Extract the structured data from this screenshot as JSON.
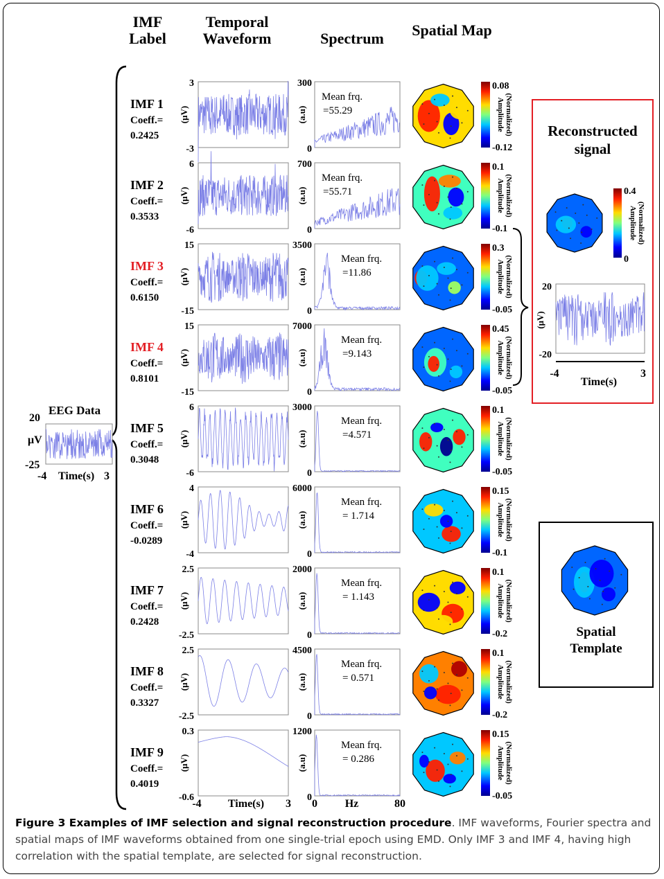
{
  "headers": {
    "imf_label": [
      "IMF",
      "Label"
    ],
    "temporal": [
      "Temporal",
      "Waveform"
    ],
    "spectrum": "Spectrum",
    "spatial": "Spatial Map"
  },
  "eeg": {
    "title": "EEG Data",
    "unit": "μV",
    "ymax": "20",
    "ymin": "-25",
    "xmin": "-4",
    "xmax": "3",
    "xlabel": "Time(s)"
  },
  "imfs": [
    {
      "label": "IMF 1",
      "coeff": "0.2425",
      "selected": false,
      "ymax": "3",
      "ymin": "-3",
      "smax": "300",
      "freq": "=55.29",
      "cmax": "0.08",
      "cmin": "-0.12",
      "freq_pos": "left"
    },
    {
      "label": "IMF 2",
      "coeff": "0.3533",
      "selected": false,
      "ymax": "6",
      "ymin": "-6",
      "smax": "700",
      "freq": "=55.71",
      "cmax": "0.1",
      "cmin": "-0.1",
      "freq_pos": "left"
    },
    {
      "label": "IMF 3",
      "coeff": "0.6150",
      "selected": true,
      "ymax": "15",
      "ymin": "-15",
      "smax": "3500",
      "freq": "=11.86",
      "cmax": "0.3",
      "cmin": "-0.05",
      "freq_pos": "right"
    },
    {
      "label": "IMF 4",
      "coeff": "0.8101",
      "selected": true,
      "ymax": "15",
      "ymin": "-15",
      "smax": "7000",
      "freq": "=9.143",
      "cmax": "0.45",
      "cmin": "-0.05",
      "freq_pos": "right"
    },
    {
      "label": "IMF 5",
      "coeff": "0.3048",
      "selected": false,
      "ymax": "6",
      "ymin": "-6",
      "smax": "3000",
      "freq": "=4.571",
      "cmax": "0.1",
      "cmin": "-0.05",
      "freq_pos": "right"
    },
    {
      "label": "IMF 6",
      "coeff": "-0.0289",
      "selected": false,
      "ymax": "4",
      "ymin": "-4",
      "smax": "6000",
      "freq": "= 1.714",
      "cmax": "0.15",
      "cmin": "-0.1",
      "freq_pos": "right"
    },
    {
      "label": "IMF 7",
      "coeff": "0.2428",
      "selected": false,
      "ymax": "2.5",
      "ymin": "-2.5",
      "smax": "2000",
      "freq": "= 1.143",
      "cmax": "0.1",
      "cmin": "-0.2",
      "freq_pos": "right"
    },
    {
      "label": "IMF 8",
      "coeff": "0.3327",
      "selected": false,
      "ymax": "2.5",
      "ymin": "-2.5",
      "smax": "4500",
      "freq": "= 0.571",
      "cmax": "0.1",
      "cmin": "-0.2",
      "freq_pos": "right"
    },
    {
      "label": "IMF 9",
      "coeff": "0.4019",
      "selected": false,
      "ymax": "0.3",
      "ymin": "-0.6",
      "smax": "1200",
      "freq": "= 0.286",
      "cmax": "0.15",
      "cmin": "-0.05",
      "freq_pos": "right"
    }
  ],
  "common": {
    "coeff_prefix": "Coeff.=",
    "temporal_unit": "(μV)",
    "spectrum_unit": "(a.u)",
    "spectrum_min": "0",
    "freq_title": "Mean frq.",
    "colorbar_label": [
      "Amplitude",
      "(Normalized)"
    ]
  },
  "axes_bottom": {
    "t_min": "-4",
    "t_label": "Time(s)",
    "t_max": "3",
    "f_min": "0",
    "f_label": "Hz",
    "f_max": "80"
  },
  "reconstructed": {
    "title": [
      "Reconstructed",
      "signal"
    ],
    "cmax": "0.4",
    "cmin": "0",
    "ymax": "20",
    "ymin": "-20",
    "xmin": "-4",
    "xmax": "3",
    "xlabel": "Time(s)",
    "unit": "(μV)"
  },
  "template": {
    "title": [
      "Spatial",
      "Template"
    ]
  },
  "caption": {
    "title": "Figure 3 Examples of IMF selection and signal reconstruction procedure",
    "body": ". IMF waveforms, Fourier spectra and spatial maps of IMF waveforms obtained from one single-trial epoch using EMD. Only IMF 3 and IMF 4, having high correlation with the spatial template, are selected for signal reconstruction."
  },
  "colors": {
    "accent": "#e31e24",
    "wave": "#7b7fe6",
    "frame": "#000000"
  }
}
